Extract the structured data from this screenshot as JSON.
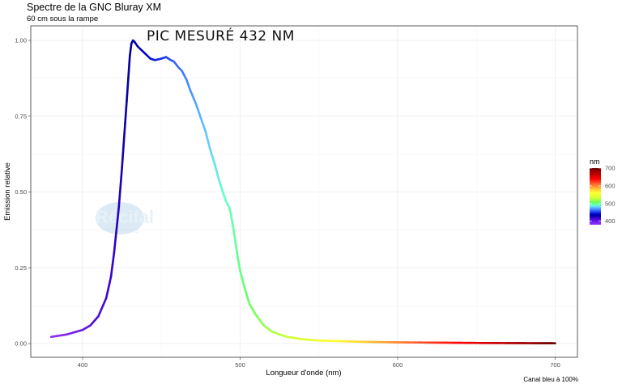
{
  "chart_data": {
    "type": "line",
    "title": "Spectre de la GNC Bluray XM",
    "subtitle": "60 cm sous la rampe",
    "caption": "Canal bleu à 100%",
    "annotation": "PIC MESURÉ  432 NM",
    "xlabel": "Longueur d'onde (nm)",
    "ylabel": "Emission relative",
    "xlim": [
      370,
      715
    ],
    "ylim": [
      -0.05,
      1.05
    ],
    "xticks": [
      "400",
      "500",
      "600",
      "700"
    ],
    "xtick_values": [
      400,
      500,
      600,
      700
    ],
    "yticks": [
      "0.00",
      "0.25",
      "0.50",
      "0.75",
      "1.00"
    ],
    "ytick_values": [
      0,
      0.25,
      0.5,
      0.75,
      1.0
    ],
    "grid": true,
    "legend": {
      "title": "nm",
      "position": "right",
      "labels": [
        "700",
        "600",
        "500",
        "400"
      ],
      "label_values": [
        700,
        600,
        500,
        400
      ],
      "range": [
        380,
        700
      ]
    },
    "watermark": "Récifal News",
    "x": [
      380,
      390,
      400,
      405,
      410,
      415,
      418,
      420,
      423,
      425,
      428,
      430,
      431,
      432,
      433,
      435,
      438,
      440,
      443,
      446,
      450,
      453,
      456,
      458,
      461,
      463,
      466,
      468,
      472,
      476,
      478,
      481,
      484,
      486,
      489,
      491,
      493,
      494,
      496,
      498,
      500,
      503,
      506,
      510,
      515,
      520,
      525,
      530,
      540,
      550,
      575,
      600,
      625,
      650,
      675,
      700
    ],
    "y": [
      0.022,
      0.03,
      0.045,
      0.06,
      0.09,
      0.15,
      0.22,
      0.3,
      0.45,
      0.58,
      0.8,
      0.95,
      0.99,
      1.0,
      0.995,
      0.98,
      0.965,
      0.955,
      0.94,
      0.935,
      0.94,
      0.945,
      0.935,
      0.93,
      0.91,
      0.9,
      0.87,
      0.84,
      0.79,
      0.73,
      0.7,
      0.64,
      0.59,
      0.55,
      0.5,
      0.47,
      0.45,
      0.43,
      0.37,
      0.3,
      0.24,
      0.18,
      0.13,
      0.095,
      0.06,
      0.04,
      0.03,
      0.022,
      0.014,
      0.01,
      0.006,
      0.004,
      0.003,
      0.002,
      0.0015,
      0.001
    ]
  },
  "colors": {
    "scale": [
      "#9933ff",
      "#3300cc",
      "#000099",
      "#0000cc",
      "#3366ff",
      "#66ccff",
      "#66ffcc",
      "#66ff66",
      "#ccff33",
      "#ffff33",
      "#ffcc33",
      "#ff6633",
      "#ff0000",
      "#cc0000",
      "#990000",
      "#660000"
    ],
    "scale_nm": [
      380,
      420,
      430,
      440,
      460,
      480,
      490,
      505,
      530,
      560,
      580,
      610,
      640,
      660,
      685,
      700
    ],
    "grid": "#ebebeb",
    "border": "#333333"
  }
}
